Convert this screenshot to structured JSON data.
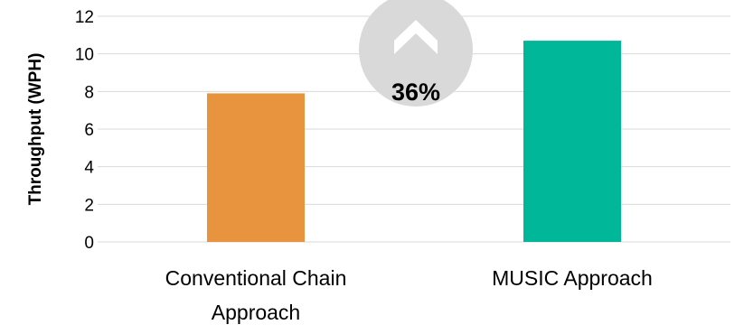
{
  "chart_data": {
    "type": "bar",
    "categories": [
      [
        "Conventional Chain",
        "Approach"
      ],
      [
        "MUSIC Approach"
      ]
    ],
    "values": [
      7.9,
      10.7
    ],
    "bar_colors": [
      "#E8943F",
      "#00B899"
    ],
    "title": "",
    "xlabel": "",
    "ylabel": "Throughput (WPH)",
    "ylim": [
      0,
      12
    ],
    "yticks": [
      "0",
      "2",
      "4",
      "6",
      "8",
      "10",
      "12"
    ],
    "grid": true,
    "legend": "none",
    "annotation": {
      "text": "36%",
      "icon": "chevron-up-icon",
      "badge_color": "#D9D9D9",
      "icon_color": "#FFFFFF"
    }
  }
}
